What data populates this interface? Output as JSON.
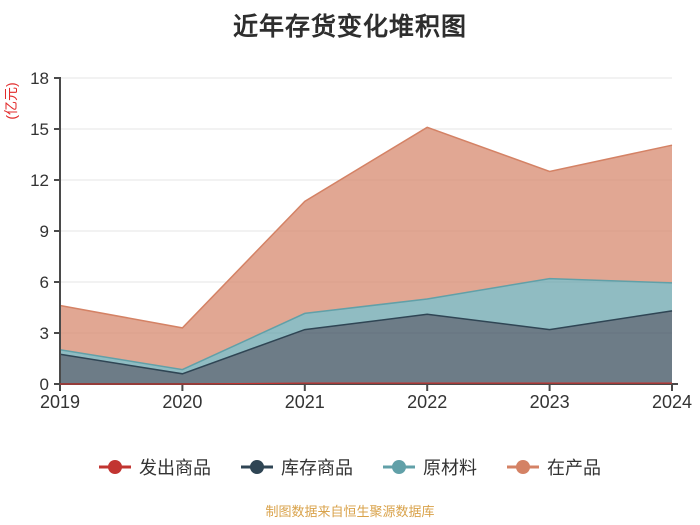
{
  "title": "近年存货变化堆积图",
  "y_axis": {
    "unit_label": "(亿元)",
    "unit_color": "#e22b2b",
    "ticks": [
      0,
      3,
      6,
      9,
      12,
      15,
      18
    ]
  },
  "x_axis": {
    "labels": [
      "2019",
      "2020",
      "2021",
      "2022",
      "2023",
      "2024"
    ]
  },
  "footer": {
    "text": "制图数据来自恒生聚源数据库",
    "color": "#d9a24a"
  },
  "colors": {
    "axis": "#4a4a4a",
    "grid": "#e6e6e6",
    "tick_text": "#333333"
  },
  "chart_data": {
    "type": "area",
    "stacked": true,
    "title": "近年存货变化堆积图",
    "xlabel": "",
    "ylabel": "(亿元)",
    "categories": [
      "2019",
      "2020",
      "2021",
      "2022",
      "2023",
      "2024"
    ],
    "ylim": [
      0,
      18
    ],
    "y_ticks": [
      0,
      3,
      6,
      9,
      12,
      15,
      18
    ],
    "grid": true,
    "legend_position": "bottom",
    "area_opacity": 0.7,
    "series": [
      {
        "name": "发出商品",
        "color": "#c23531",
        "values": [
          0,
          0,
          0.05,
          0.05,
          0.05,
          0.05
        ]
      },
      {
        "name": "库存商品",
        "color": "#2f4554",
        "values": [
          1.75,
          0.6,
          3.15,
          4.05,
          3.15,
          4.25
        ]
      },
      {
        "name": "原材料",
        "color": "#61a0a8",
        "values": [
          0.27,
          0.25,
          0.95,
          0.9,
          3.0,
          1.65
        ]
      },
      {
        "name": "在产品",
        "color": "#d48265",
        "values": [
          2.6,
          2.45,
          6.6,
          10.1,
          6.3,
          8.1
        ]
      }
    ],
    "cumulative_totals": [
      4.62,
      3.3,
      10.75,
      15.1,
      12.5,
      14.05
    ]
  }
}
